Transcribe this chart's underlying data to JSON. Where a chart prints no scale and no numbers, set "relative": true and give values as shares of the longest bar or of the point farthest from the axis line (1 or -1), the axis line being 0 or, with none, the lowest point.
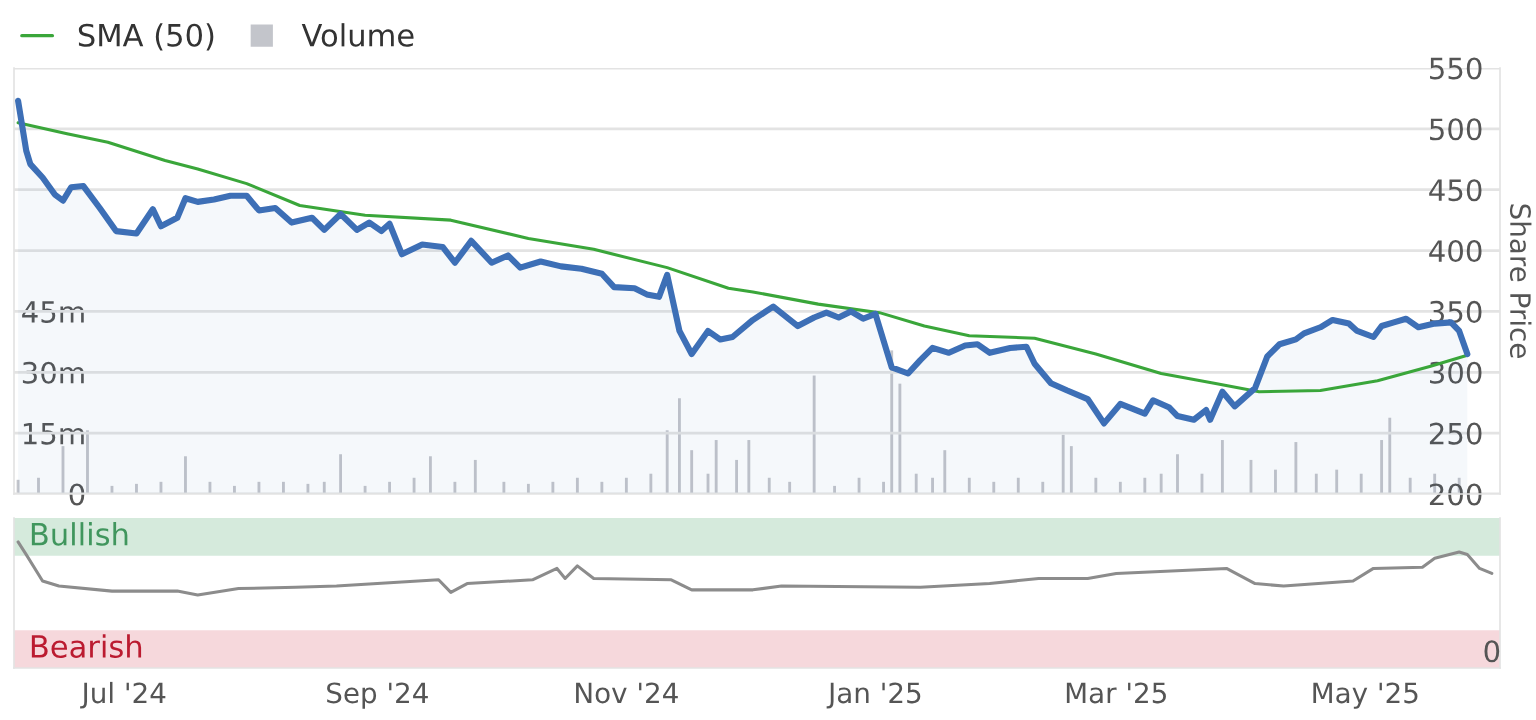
{
  "chart_data": [
    {
      "type": "line",
      "ylabel": "Share Price",
      "legend": "top left",
      "grid": "y",
      "tick_labels": "y",
      "xlim": [
        "2024-06-04",
        "2025-06-03"
      ],
      "ylim": [
        200,
        550
      ],
      "yticks": [
        200,
        250,
        300,
        350,
        400,
        450,
        500,
        550
      ],
      "y2lim": [
        0,
        105
      ],
      "y2ticks": [
        0,
        {
          "value": 15,
          "label": "15m"
        },
        {
          "value": 30,
          "label": "30m"
        },
        {
          "value": 45,
          "label": "45m"
        }
      ],
      "series": [
        {
          "name": "SMA (50)",
          "type": "line",
          "color": "#3aa63a",
          "x": [
            "2024-06-05",
            "2024-06-17",
            "2024-06-27",
            "2024-07-11",
            "2024-07-19",
            "2024-07-31",
            "2024-08-13",
            "2024-08-29",
            "2024-09-19",
            "2024-10-08",
            "2024-10-24",
            "2024-11-11",
            "2024-11-26",
            "2024-12-02",
            "2024-12-18",
            "2025-01-02",
            "2025-01-13",
            "2025-01-24",
            "2025-02-09",
            "2025-02-24",
            "2025-03-12",
            "2025-03-25",
            "2025-04-05",
            "2025-04-20",
            "2025-05-04",
            "2025-05-17",
            "2025-05-26"
          ],
          "values": [
            505,
            496,
            489,
            474,
            467,
            455,
            437,
            429,
            425,
            410,
            401,
            386,
            369,
            366,
            356,
            349,
            338,
            330,
            328,
            315,
            299,
            291,
            284,
            285,
            293,
            305,
            314
          ]
        },
        {
          "name": "Volume",
          "type": "bar",
          "axis": "y2",
          "color": "#c3c5cb",
          "x": [
            "2024-06-05",
            "2024-06-10",
            "2024-06-16",
            "2024-06-22",
            "2024-06-28",
            "2024-07-04",
            "2024-07-10",
            "2024-07-16",
            "2024-07-22",
            "2024-07-28",
            "2024-08-03",
            "2024-08-09",
            "2024-08-15",
            "2024-08-19",
            "2024-08-23",
            "2024-08-29",
            "2024-09-04",
            "2024-09-10",
            "2024-09-14",
            "2024-09-20",
            "2024-09-25",
            "2024-10-02",
            "2024-10-08",
            "2024-10-14",
            "2024-10-20",
            "2024-10-26",
            "2024-11-01",
            "2024-11-07",
            "2024-11-11",
            "2024-11-14",
            "2024-11-17",
            "2024-11-21",
            "2024-11-23",
            "2024-11-28",
            "2024-12-01",
            "2024-12-06",
            "2024-12-11",
            "2024-12-17",
            "2024-12-22",
            "2024-12-28",
            "2025-01-03",
            "2025-01-05",
            "2025-01-07",
            "2025-01-11",
            "2025-01-15",
            "2025-01-18",
            "2025-01-24",
            "2025-01-30",
            "2025-02-05",
            "2025-02-11",
            "2025-02-16",
            "2025-02-18",
            "2025-02-24",
            "2025-03-02",
            "2025-03-08",
            "2025-03-12",
            "2025-03-16",
            "2025-03-22",
            "2025-03-27",
            "2025-04-03",
            "2025-04-09",
            "2025-04-14",
            "2025-04-19",
            "2025-04-24",
            "2025-04-30",
            "2025-05-05",
            "2025-05-07",
            "2025-05-12",
            "2025-05-18",
            "2025-05-24"
          ],
          "values": [
            3.5,
            4,
            11.8,
            15.7,
            2,
            2.5,
            3,
            9.3,
            3,
            2,
            3,
            3,
            2.5,
            3,
            9.8,
            2,
            3,
            4,
            9.3,
            3,
            8.4,
            3,
            2.5,
            3,
            4,
            3,
            4,
            5,
            15.7,
            23.6,
            10.8,
            5,
            13.3,
            8.4,
            13.3,
            4,
            3,
            29.2,
            2,
            4,
            3,
            35.4,
            27.2,
            5,
            4,
            10.8,
            4,
            3,
            4,
            3,
            14.6,
            11.8,
            4,
            3,
            4,
            5,
            9.8,
            5,
            13.3,
            8.4,
            6,
            12.8,
            5,
            6,
            5,
            13.3,
            18.8,
            4,
            5,
            4
          ]
        },
        {
          "type": "area",
          "color": "#3d6fb6",
          "x": [
            "2024-06-05",
            "2024-06-07",
            "2024-06-08",
            "2024-06-11",
            "2024-06-14",
            "2024-06-16",
            "2024-06-18",
            "2024-06-21",
            "2024-06-25",
            "2024-06-29",
            "2024-07-04",
            "2024-07-08",
            "2024-07-10",
            "2024-07-14",
            "2024-07-16",
            "2024-07-19",
            "2024-07-23",
            "2024-07-27",
            "2024-07-31",
            "2024-08-03",
            "2024-08-07",
            "2024-08-11",
            "2024-08-16",
            "2024-08-19",
            "2024-08-23",
            "2024-08-27",
            "2024-08-30",
            "2024-09-02",
            "2024-09-04",
            "2024-09-07",
            "2024-09-12",
            "2024-09-17",
            "2024-09-20",
            "2024-09-24",
            "2024-09-29",
            "2024-10-03",
            "2024-10-06",
            "2024-10-11",
            "2024-10-16",
            "2024-10-21",
            "2024-10-26",
            "2024-10-29",
            "2024-11-03",
            "2024-11-06",
            "2024-11-09",
            "2024-11-11",
            "2024-11-14",
            "2024-11-17",
            "2024-11-21",
            "2024-11-24",
            "2024-11-27",
            "2024-12-02",
            "2024-12-07",
            "2024-12-13",
            "2024-12-17",
            "2024-12-20",
            "2024-12-23",
            "2024-12-26",
            "2024-12-29",
            "2025-01-01",
            "2025-01-05",
            "2025-01-09",
            "2025-01-12",
            "2025-01-15",
            "2025-01-19",
            "2025-01-23",
            "2025-01-26",
            "2025-01-29",
            "2025-02-03",
            "2025-02-07",
            "2025-02-09",
            "2025-02-13",
            "2025-02-17",
            "2025-02-22",
            "2025-02-26",
            "2025-03-02",
            "2025-03-08",
            "2025-03-10",
            "2025-03-14",
            "2025-03-16",
            "2025-03-20",
            "2025-03-23",
            "2025-03-24",
            "2025-03-27",
            "2025-03-30",
            "2025-04-04",
            "2025-04-07",
            "2025-04-10",
            "2025-04-14",
            "2025-04-16",
            "2025-04-20",
            "2025-04-23",
            "2025-04-27",
            "2025-04-29",
            "2025-05-03",
            "2025-05-05",
            "2025-05-08",
            "2025-05-11",
            "2025-05-14",
            "2025-05-18",
            "2025-05-22",
            "2025-05-24",
            "2025-05-26"
          ],
          "values": [
            523,
            482,
            471,
            460,
            446,
            441,
            452,
            453,
            435,
            416,
            414,
            434,
            420,
            427,
            443,
            440,
            442,
            445,
            445,
            433,
            435,
            423,
            427,
            417,
            430,
            417,
            423,
            416,
            422,
            397,
            405,
            403,
            390,
            408,
            390,
            396,
            386,
            391,
            387,
            385,
            381,
            370,
            369,
            364,
            362,
            380,
            334,
            315,
            334,
            327,
            329,
            343,
            354,
            338,
            345,
            349,
            345,
            350,
            344,
            348,
            304,
            299,
            310,
            320,
            316,
            322,
            323,
            316,
            320,
            321,
            307,
            291,
            285,
            278,
            258,
            274,
            266,
            277,
            271,
            264,
            261,
            269,
            261,
            284,
            272,
            287,
            313,
            323,
            327,
            332,
            337,
            343,
            340,
            334,
            329,
            338,
            341,
            344,
            337,
            340,
            341,
            334,
            315
          ]
        }
      ]
    },
    {
      "type": "line",
      "relative": true,
      "xlim": [
        "2024-06-04",
        "2025-06-03"
      ],
      "annotations": [
        {
          "text": "0",
          "x": "2025-06-01",
          "y": 0
        }
      ],
      "xticks": [
        {
          "value": "2024-07-01",
          "label": "Jul '24"
        },
        {
          "value": "2024-09-01",
          "label": "Sep '24"
        },
        {
          "value": "2024-11-01",
          "label": "Nov '24"
        },
        {
          "value": "2025-01-01",
          "label": "Jan '25"
        },
        {
          "value": "2025-03-01",
          "label": "Mar '25"
        },
        {
          "value": "2025-05-01",
          "label": "May '25"
        }
      ],
      "bands": [
        {
          "axis": "y",
          "from": 0.89,
          "to": 1.19,
          "label": "Bullish",
          "color": "#d5eadc"
        },
        {
          "axis": "y",
          "from": 0,
          "to": 0.3,
          "label": "Bearish",
          "color": "#f6d8dc"
        }
      ],
      "series": [
        {
          "color": "#8c8c8c",
          "x": [
            "2024-06-05",
            "2024-06-07",
            "2024-06-11",
            "2024-06-15",
            "2024-06-28",
            "2024-07-14",
            "2024-07-19",
            "2024-07-29",
            "2024-08-12",
            "2024-08-22",
            "2024-09-16",
            "2024-09-19",
            "2024-09-23",
            "2024-10-09",
            "2024-10-15",
            "2024-10-17",
            "2024-10-20",
            "2024-10-24",
            "2024-11-12",
            "2024-11-17",
            "2024-12-02",
            "2024-12-09",
            "2025-01-12",
            "2025-01-29",
            "2025-02-10",
            "2025-02-22",
            "2025-03-01",
            "2025-03-28",
            "2025-04-04",
            "2025-04-11",
            "2025-04-28",
            "2025-05-03",
            "2025-05-15",
            "2025-05-18",
            "2025-05-24",
            "2025-05-26",
            "2025-05-29",
            "2025-06-01"
          ],
          "values": [
            1,
            0.9,
            0.69,
            0.65,
            0.61,
            0.61,
            0.58,
            0.63,
            0.64,
            0.65,
            0.7,
            0.6,
            0.67,
            0.7,
            0.79,
            0.71,
            0.81,
            0.71,
            0.7,
            0.62,
            0.62,
            0.65,
            0.64,
            0.67,
            0.71,
            0.71,
            0.75,
            0.79,
            0.67,
            0.65,
            0.69,
            0.79,
            0.8,
            0.87,
            0.92,
            0.9,
            0.79,
            0.75
          ]
        }
      ]
    }
  ]
}
